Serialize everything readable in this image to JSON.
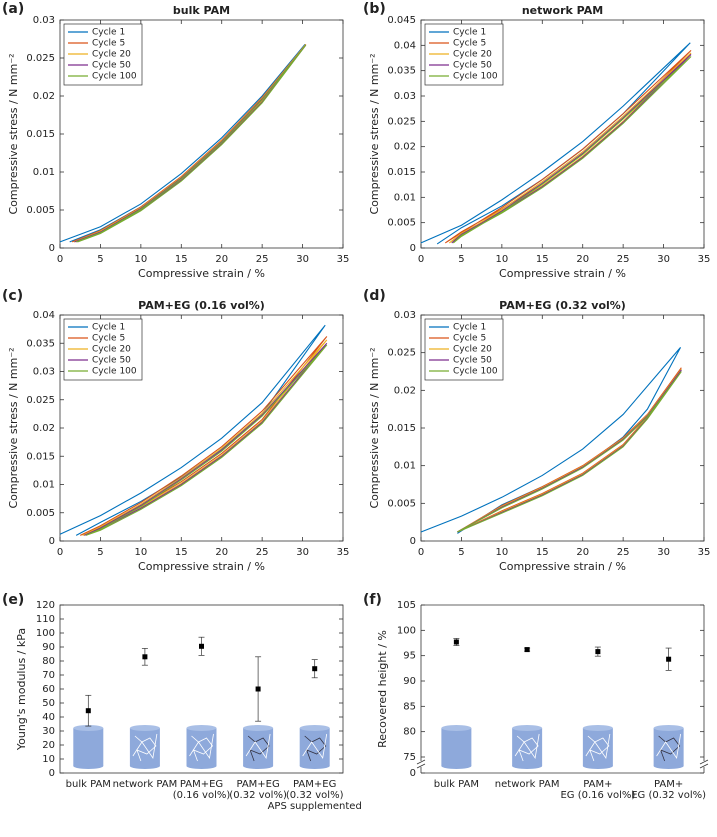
{
  "chart_data": [
    {
      "type": "line",
      "label": "(a)",
      "title": "bulk PAM",
      "xlabel": "Compressive strain / %",
      "ylabel": "Compressive stress / N mm⁻²",
      "xlim": [
        0,
        35
      ],
      "xticks": [
        0,
        5,
        10,
        15,
        20,
        25,
        30,
        35
      ],
      "ylim": [
        0,
        0.03
      ],
      "yticks": [
        0,
        0.005,
        0.01,
        0.015,
        0.02,
        0.025,
        0.03
      ],
      "legend": "upper left",
      "series": [
        {
          "name": "Cycle 1",
          "color": "#0072BD",
          "x": [
            0,
            5,
            10,
            15,
            20,
            25,
            30.3,
            25,
            20,
            15,
            10,
            5,
            1.2
          ],
          "values": [
            0.0008,
            0.0028,
            0.0058,
            0.0098,
            0.0145,
            0.02,
            0.0268,
            0.0195,
            0.014,
            0.0093,
            0.0054,
            0.0024,
            0.0008
          ]
        },
        {
          "name": "Cycle 5",
          "color": "#D95319",
          "x": [
            1.5,
            5,
            10,
            15,
            20,
            25,
            30.4,
            25,
            20,
            15,
            10,
            5,
            1.8
          ],
          "values": [
            0.0008,
            0.0023,
            0.0054,
            0.0094,
            0.0142,
            0.0198,
            0.0268,
            0.0194,
            0.0139,
            0.0091,
            0.0052,
            0.0022,
            0.0008
          ]
        },
        {
          "name": "Cycle 20",
          "color": "#EDB120",
          "x": [
            1.7,
            5,
            10,
            15,
            20,
            25,
            30.4,
            25,
            20,
            15,
            10,
            5,
            2
          ],
          "values": [
            0.0008,
            0.0022,
            0.0053,
            0.0093,
            0.0141,
            0.0197,
            0.0268,
            0.0193,
            0.0138,
            0.009,
            0.0051,
            0.0021,
            0.0008
          ]
        },
        {
          "name": "Cycle 50",
          "color": "#7E2F8E",
          "x": [
            1.8,
            5,
            10,
            15,
            20,
            25,
            30.4,
            25,
            20,
            15,
            10,
            5,
            2.1
          ],
          "values": [
            0.0008,
            0.0021,
            0.0052,
            0.0092,
            0.014,
            0.0196,
            0.0267,
            0.0192,
            0.0137,
            0.0089,
            0.005,
            0.002,
            0.0008
          ]
        },
        {
          "name": "Cycle 100",
          "color": "#77AC30",
          "x": [
            2,
            5,
            10,
            15,
            20,
            25,
            30.4,
            25,
            20,
            15,
            10,
            5,
            2.2
          ],
          "values": [
            0.0008,
            0.002,
            0.0051,
            0.0091,
            0.0139,
            0.0195,
            0.0267,
            0.0191,
            0.0136,
            0.0088,
            0.0049,
            0.0019,
            0.0008
          ]
        }
      ]
    },
    {
      "type": "line",
      "label": "(b)",
      "title": "network PAM",
      "xlabel": "Compressive strain / %",
      "ylabel": "Compressive stress / N mm⁻²",
      "xlim": [
        0,
        35
      ],
      "xticks": [
        0,
        5,
        10,
        15,
        20,
        25,
        30,
        35
      ],
      "ylim": [
        0,
        0.045
      ],
      "yticks": [
        0,
        0.005,
        0.01,
        0.015,
        0.02,
        0.025,
        0.03,
        0.035,
        0.04,
        0.045
      ],
      "legend": "upper left",
      "series": [
        {
          "name": "Cycle 1",
          "color": "#0072BD",
          "x": [
            0,
            5,
            10,
            15,
            20,
            25,
            33.3,
            25,
            20,
            15,
            10,
            5,
            2
          ],
          "values": [
            0.001,
            0.0045,
            0.0095,
            0.015,
            0.021,
            0.028,
            0.0405,
            0.0265,
            0.0195,
            0.0135,
            0.0083,
            0.004,
            0.0008
          ]
        },
        {
          "name": "Cycle 5",
          "color": "#D95319",
          "x": [
            3,
            5,
            10,
            15,
            20,
            25,
            33.4,
            25,
            20,
            15,
            10,
            5,
            3
          ],
          "values": [
            0.001,
            0.003,
            0.008,
            0.0135,
            0.0195,
            0.0265,
            0.039,
            0.0255,
            0.0185,
            0.0127,
            0.0077,
            0.0032,
            0.001
          ]
        },
        {
          "name": "Cycle 20",
          "color": "#EDB120",
          "x": [
            3.5,
            5,
            10,
            15,
            20,
            25,
            33.4,
            25,
            20,
            15,
            10,
            5,
            3.5
          ],
          "values": [
            0.001,
            0.0027,
            0.0076,
            0.0131,
            0.019,
            0.026,
            0.0385,
            0.025,
            0.0181,
            0.0123,
            0.0073,
            0.0029,
            0.001
          ]
        },
        {
          "name": "Cycle 50",
          "color": "#7E2F8E",
          "x": [
            3.8,
            5,
            10,
            15,
            20,
            25,
            33.4,
            25,
            20,
            15,
            10,
            5,
            3.8
          ],
          "values": [
            0.001,
            0.0025,
            0.0073,
            0.0128,
            0.0187,
            0.0257,
            0.0382,
            0.0248,
            0.0179,
            0.0121,
            0.0071,
            0.0027,
            0.001
          ]
        },
        {
          "name": "Cycle 100",
          "color": "#77AC30",
          "x": [
            4,
            5,
            10,
            15,
            20,
            25,
            33.4,
            25,
            20,
            15,
            10,
            5,
            4
          ],
          "values": [
            0.001,
            0.0023,
            0.0071,
            0.0126,
            0.0185,
            0.0255,
            0.0378,
            0.0246,
            0.0177,
            0.0119,
            0.0069,
            0.0025,
            0.001
          ]
        }
      ]
    },
    {
      "type": "line",
      "label": "(c)",
      "title": "PAM+EG (0.16 vol%)",
      "xlabel": "Compressive strain / %",
      "ylabel": "Compressive stress / N mm⁻²",
      "xlim": [
        0,
        35
      ],
      "xticks": [
        0,
        5,
        10,
        15,
        20,
        25,
        30,
        35
      ],
      "ylim": [
        0,
        0.04
      ],
      "yticks": [
        0,
        0.005,
        0.01,
        0.015,
        0.02,
        0.025,
        0.03,
        0.035,
        0.04
      ],
      "legend": "upper left",
      "series": [
        {
          "name": "Cycle 1",
          "color": "#0072BD",
          "x": [
            0,
            5,
            10,
            15,
            20,
            25,
            32.8,
            25,
            20,
            15,
            10,
            5,
            2
          ],
          "values": [
            0.0012,
            0.0045,
            0.0085,
            0.013,
            0.0182,
            0.0245,
            0.0382,
            0.0225,
            0.0163,
            0.0113,
            0.007,
            0.0033,
            0.001
          ]
        },
        {
          "name": "Cycle 5",
          "color": "#D95319",
          "x": [
            2.5,
            5,
            10,
            15,
            20,
            25,
            33,
            25,
            20,
            15,
            10,
            5,
            2.5
          ],
          "values": [
            0.001,
            0.0027,
            0.0068,
            0.0115,
            0.0167,
            0.023,
            0.0362,
            0.0215,
            0.0155,
            0.0105,
            0.0062,
            0.0025,
            0.001
          ]
        },
        {
          "name": "Cycle 20",
          "color": "#EDB120",
          "x": [
            2.8,
            5,
            10,
            15,
            20,
            25,
            33,
            25,
            20,
            15,
            10,
            5,
            2.8
          ],
          "values": [
            0.001,
            0.0025,
            0.0065,
            0.0112,
            0.0164,
            0.0226,
            0.0356,
            0.0212,
            0.0152,
            0.0102,
            0.006,
            0.0023,
            0.001
          ]
        },
        {
          "name": "Cycle 50",
          "color": "#7E2F8E",
          "x": [
            3,
            5,
            10,
            15,
            20,
            25,
            33,
            25,
            20,
            15,
            10,
            5,
            3
          ],
          "values": [
            0.001,
            0.0023,
            0.0063,
            0.011,
            0.0161,
            0.0223,
            0.035,
            0.021,
            0.015,
            0.01,
            0.0058,
            0.0021,
            0.001
          ]
        },
        {
          "name": "Cycle 100",
          "color": "#77AC30",
          "x": [
            3.2,
            5,
            10,
            15,
            20,
            25,
            33,
            25,
            20,
            15,
            10,
            5,
            3.2
          ],
          "values": [
            0.001,
            0.0021,
            0.0061,
            0.0108,
            0.0159,
            0.0221,
            0.0347,
            0.0208,
            0.0148,
            0.0098,
            0.0056,
            0.0019,
            0.001
          ]
        }
      ]
    },
    {
      "type": "line",
      "label": "(d)",
      "title": "PAM+EG (0.32 vol%)",
      "xlabel": "Compressive strain / %",
      "ylabel": "Compressive stress / N mm⁻²",
      "xlim": [
        0,
        35
      ],
      "xticks": [
        0,
        5,
        10,
        15,
        20,
        25,
        30,
        35
      ],
      "ylim": [
        0,
        0.03
      ],
      "yticks": [
        0,
        0.005,
        0.01,
        0.015,
        0.02,
        0.025,
        0.03
      ],
      "legend": "upper left",
      "series": [
        {
          "name": "Cycle 1",
          "color": "#0072BD",
          "x": [
            0,
            5,
            10,
            15,
            20,
            25,
            32.1,
            28,
            25,
            20,
            15,
            10,
            4.5
          ],
          "values": [
            0.0012,
            0.0033,
            0.0058,
            0.0087,
            0.0122,
            0.0168,
            0.0257,
            0.0175,
            0.0138,
            0.0098,
            0.0072,
            0.0048,
            0.001
          ]
        },
        {
          "name": "Cycle 5",
          "color": "#D95319",
          "x": [
            4.5,
            10,
            15,
            20,
            25,
            28,
            32.2,
            28,
            25,
            20,
            15,
            10,
            4.5
          ],
          "values": [
            0.0012,
            0.0047,
            0.0072,
            0.01,
            0.0137,
            0.0168,
            0.023,
            0.0165,
            0.0128,
            0.009,
            0.0063,
            0.004,
            0.0012
          ]
        },
        {
          "name": "Cycle 20",
          "color": "#EDB120",
          "x": [
            4.5,
            10,
            15,
            20,
            25,
            28,
            32.2,
            28,
            25,
            20,
            15,
            10,
            4.5
          ],
          "values": [
            0.0012,
            0.0046,
            0.0071,
            0.0099,
            0.0136,
            0.0167,
            0.0228,
            0.0164,
            0.0127,
            0.0089,
            0.0062,
            0.0039,
            0.0012
          ]
        },
        {
          "name": "Cycle 50",
          "color": "#7E2F8E",
          "x": [
            4.5,
            10,
            15,
            20,
            25,
            28,
            32.2,
            28,
            25,
            20,
            15,
            10,
            4.5
          ],
          "values": [
            0.0012,
            0.0045,
            0.007,
            0.0098,
            0.0135,
            0.0166,
            0.0227,
            0.0163,
            0.0126,
            0.0088,
            0.0061,
            0.0038,
            0.0012
          ]
        },
        {
          "name": "Cycle 100",
          "color": "#77AC30",
          "x": [
            4.5,
            10,
            15,
            20,
            25,
            28,
            32.2,
            28,
            25,
            20,
            15,
            10,
            4.5
          ],
          "values": [
            0.0012,
            0.0044,
            0.0069,
            0.0097,
            0.0134,
            0.0165,
            0.0225,
            0.0162,
            0.0125,
            0.0087,
            0.006,
            0.0037,
            0.0012
          ]
        }
      ]
    },
    {
      "type": "errorbar",
      "label": "(e)",
      "ylabel": "Young's modulus  /  kPa",
      "categories": [
        [
          "bulk PAM"
        ],
        [
          "network PAM"
        ],
        [
          "PAM+EG",
          "(0.16 vol%)"
        ],
        [
          "PAM+EG",
          "(0.32 vol%)"
        ],
        [
          "PAM+EG",
          "(0.32 vol%)",
          "APS supplemented"
        ]
      ],
      "values": [
        44.5,
        83,
        90.5,
        60,
        74.5
      ],
      "errors": [
        11,
        6,
        6.5,
        23,
        6.5
      ],
      "color": "#000000",
      "ylim": [
        0,
        120
      ],
      "yticks": [
        0,
        10,
        20,
        30,
        40,
        50,
        60,
        70,
        80,
        90,
        100,
        110,
        120
      ]
    },
    {
      "type": "errorbar",
      "label": "(f)",
      "ylabel": "Recovered height / %",
      "categories": [
        [
          "bulk PAM"
        ],
        [
          "network PAM"
        ],
        [
          "PAM+",
          "EG (0.16 vol%)"
        ],
        [
          "PAM+",
          "EG (0.32 vol%)"
        ]
      ],
      "values": [
        97.7,
        96.2,
        95.8,
        94.3
      ],
      "errors": [
        0.7,
        0.3,
        0.9,
        2.2
      ],
      "color": "#000000",
      "ylim": [
        0,
        105
      ],
      "axis_break": [
        0,
        75
      ],
      "yticks": [
        0,
        75,
        80,
        85,
        90,
        95,
        100,
        105
      ]
    }
  ]
}
